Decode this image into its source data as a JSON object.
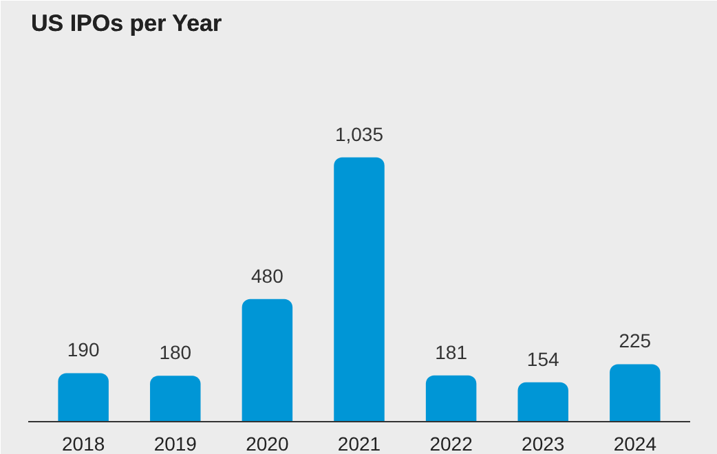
{
  "chart_data": {
    "type": "bar",
    "title": "US IPOs per Year",
    "categories": [
      "2018",
      "2019",
      "2020",
      "2021",
      "2022",
      "2023",
      "2024"
    ],
    "values": [
      190,
      180,
      480,
      1035,
      181,
      154,
      225
    ],
    "value_labels": [
      "190",
      "180",
      "480",
      "1,035",
      "181",
      "154",
      "225"
    ],
    "color": "#0096d6",
    "grid": false,
    "tick_labels": "x"
  }
}
